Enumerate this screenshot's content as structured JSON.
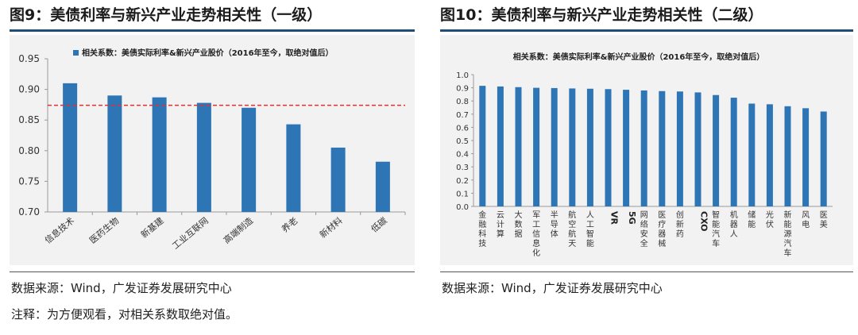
{
  "panels": [
    {
      "title": "图9：美债利率与新兴产业走势相关性（一级）",
      "source": "数据来源：Wind，广发证券发展研究中心",
      "note": "注释：为方便观看，对相关系数取绝对值。"
    },
    {
      "title": "图10：美债利率与新兴产业走势相关性（二级）",
      "source": "数据来源：Wind，广发证券发展研究中心"
    }
  ],
  "colors": {
    "bar": "#2e75b6",
    "reference_line": "#e03030",
    "title_rule": "#1f4e79",
    "chart_bg": "#f2f2f2"
  },
  "chart_data": [
    {
      "type": "bar",
      "legend": "相关系数：美债实际利率&新兴产业股价（2016年至今，取绝对值后）",
      "legend_position": "top",
      "categories": [
        "信息技术",
        "医药生物",
        "新基建",
        "工业互联网",
        "高端制造",
        "养老",
        "新材料",
        "低碳"
      ],
      "values": [
        0.91,
        0.89,
        0.887,
        0.878,
        0.87,
        0.843,
        0.805,
        0.782
      ],
      "ylim": [
        0.7,
        0.95
      ],
      "yticks": [
        "0.70",
        "0.75",
        "0.80",
        "0.85",
        "0.90",
        "0.95"
      ],
      "reference_line": 0.874,
      "grid": false
    },
    {
      "type": "bar",
      "title": "相关系数：美债实际利率&新兴产业股价（2016年至今，取绝对值后）",
      "categories": [
        "金融科技",
        "云计算",
        "大数据",
        "军工信息化",
        "半导体",
        "航空航天",
        "人工智能",
        "VR",
        "5G",
        "网络安全",
        "医疗器械",
        "创新药",
        "CXO",
        "智能汽车",
        "机器人",
        "储能",
        "光伏",
        "新能源汽车",
        "风电",
        "医美"
      ],
      "values": [
        0.915,
        0.91,
        0.905,
        0.9,
        0.898,
        0.895,
        0.893,
        0.89,
        0.885,
        0.88,
        0.875,
        0.872,
        0.865,
        0.845,
        0.825,
        0.78,
        0.775,
        0.76,
        0.745,
        0.72
      ],
      "ylim": [
        0.0,
        1.0
      ],
      "yticks": [
        "0.0",
        "0.1",
        "0.2",
        "0.3",
        "0.4",
        "0.5",
        "0.6",
        "0.7",
        "0.8",
        "0.9",
        "1.0"
      ],
      "grid": false
    }
  ]
}
